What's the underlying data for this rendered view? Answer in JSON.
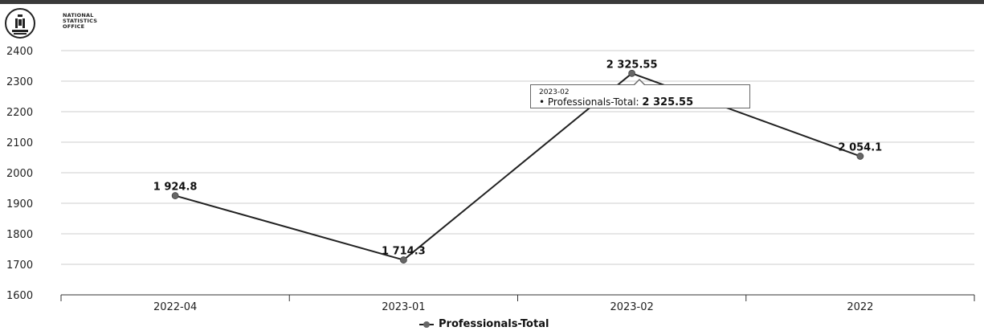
{
  "logo": {
    "line1": "NATIONAL",
    "line2": "STATISTICS",
    "line3": "OFFICE",
    "icon": "soyombo-emblem-icon"
  },
  "tooltip": {
    "date": "2023-02",
    "series": "Professionals-Total:",
    "value": "2 325.55"
  },
  "legend": {
    "label": "Professionals-Total"
  },
  "chart_data": {
    "type": "line",
    "categories": [
      "2022-04",
      "2023-01",
      "2023-02",
      "2022"
    ],
    "series": [
      {
        "name": "Professionals-Total",
        "values": [
          1924.8,
          1714.3,
          2325.55,
          2054.1
        ],
        "labels": [
          "1 924.8",
          "1 714.3",
          "2 325.55",
          "2 054.1"
        ]
      }
    ],
    "ylim": [
      1600,
      2400
    ],
    "yticks": [
      1600,
      1700,
      1800,
      1900,
      2000,
      2100,
      2200,
      2300,
      2400
    ],
    "grid": true,
    "legend_position": "bottom",
    "colors": {
      "line": "#222222",
      "marker": "#666666",
      "grid": "#cccccc"
    }
  }
}
